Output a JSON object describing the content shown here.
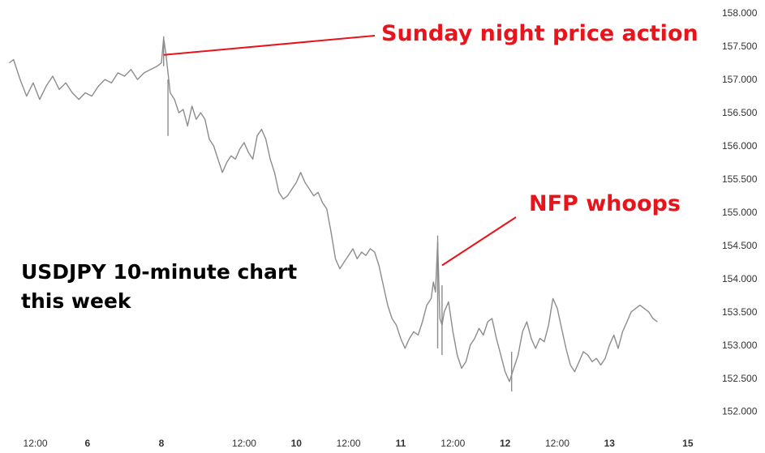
{
  "chart_data": {
    "type": "line",
    "title": "USDJPY 10-minute chart this week",
    "title_lines": [
      "USDJPY 10-minute chart",
      "this week"
    ],
    "series": [
      {
        "color": "#8c8c8c",
        "points": [
          [
            0,
            157.25
          ],
          [
            2,
            157.3
          ],
          [
            5,
            157.0
          ],
          [
            8,
            156.75
          ],
          [
            11,
            156.95
          ],
          [
            14,
            156.7
          ],
          [
            17,
            156.9
          ],
          [
            20,
            157.05
          ],
          [
            23,
            156.85
          ],
          [
            26,
            156.95
          ],
          [
            29,
            156.8
          ],
          [
            32,
            156.7
          ],
          [
            35,
            156.8
          ],
          [
            38,
            156.75
          ],
          [
            41,
            156.9
          ],
          [
            44,
            157.0
          ],
          [
            47,
            156.95
          ],
          [
            50,
            157.1
          ],
          [
            53,
            157.05
          ],
          [
            56,
            157.15
          ],
          [
            59,
            157.0
          ],
          [
            62,
            157.1
          ],
          [
            65,
            157.15
          ],
          [
            68,
            157.2
          ],
          [
            70,
            157.25
          ],
          [
            71,
            157.62
          ],
          [
            72,
            157.4
          ],
          [
            73,
            157.1
          ],
          [
            74,
            156.8
          ],
          [
            76,
            156.7
          ],
          [
            78,
            156.5
          ],
          [
            80,
            156.55
          ],
          [
            82,
            156.3
          ],
          [
            84,
            156.6
          ],
          [
            86,
            156.4
          ],
          [
            88,
            156.5
          ],
          [
            90,
            156.4
          ],
          [
            92,
            156.1
          ],
          [
            94,
            156.0
          ],
          [
            96,
            155.8
          ],
          [
            98,
            155.6
          ],
          [
            100,
            155.75
          ],
          [
            102,
            155.85
          ],
          [
            104,
            155.8
          ],
          [
            106,
            155.95
          ],
          [
            108,
            156.05
          ],
          [
            110,
            155.9
          ],
          [
            112,
            155.8
          ],
          [
            114,
            156.15
          ],
          [
            116,
            156.25
          ],
          [
            118,
            156.1
          ],
          [
            120,
            155.8
          ],
          [
            122,
            155.6
          ],
          [
            124,
            155.3
          ],
          [
            126,
            155.2
          ],
          [
            128,
            155.25
          ],
          [
            130,
            155.35
          ],
          [
            132,
            155.45
          ],
          [
            134,
            155.6
          ],
          [
            136,
            155.45
          ],
          [
            138,
            155.35
          ],
          [
            140,
            155.25
          ],
          [
            142,
            155.3
          ],
          [
            144,
            155.15
          ],
          [
            146,
            155.05
          ],
          [
            148,
            154.7
          ],
          [
            150,
            154.3
          ],
          [
            152,
            154.15
          ],
          [
            154,
            154.25
          ],
          [
            156,
            154.35
          ],
          [
            158,
            154.45
          ],
          [
            160,
            154.3
          ],
          [
            162,
            154.4
          ],
          [
            164,
            154.35
          ],
          [
            166,
            154.45
          ],
          [
            168,
            154.4
          ],
          [
            170,
            154.2
          ],
          [
            172,
            153.9
          ],
          [
            174,
            153.6
          ],
          [
            176,
            153.4
          ],
          [
            178,
            153.3
          ],
          [
            180,
            153.1
          ],
          [
            182,
            152.95
          ],
          [
            184,
            153.1
          ],
          [
            186,
            153.2
          ],
          [
            188,
            153.15
          ],
          [
            190,
            153.35
          ],
          [
            192,
            153.6
          ],
          [
            194,
            153.7
          ],
          [
            195,
            153.95
          ],
          [
            196,
            153.8
          ],
          [
            197,
            154.55
          ],
          [
            198,
            153.4
          ],
          [
            199,
            153.3
          ],
          [
            200,
            153.5
          ],
          [
            202,
            153.65
          ],
          [
            204,
            153.2
          ],
          [
            206,
            152.85
          ],
          [
            208,
            152.65
          ],
          [
            210,
            152.75
          ],
          [
            212,
            153.0
          ],
          [
            214,
            153.1
          ],
          [
            216,
            153.25
          ],
          [
            218,
            153.15
          ],
          [
            220,
            153.35
          ],
          [
            222,
            153.4
          ],
          [
            224,
            153.1
          ],
          [
            226,
            152.85
          ],
          [
            228,
            152.6
          ],
          [
            230,
            152.45
          ],
          [
            232,
            152.65
          ],
          [
            234,
            152.85
          ],
          [
            236,
            153.2
          ],
          [
            238,
            153.35
          ],
          [
            240,
            153.1
          ],
          [
            242,
            152.95
          ],
          [
            244,
            153.1
          ],
          [
            246,
            153.05
          ],
          [
            248,
            153.3
          ],
          [
            250,
            153.7
          ],
          [
            252,
            153.55
          ],
          [
            254,
            153.25
          ],
          [
            256,
            152.95
          ],
          [
            258,
            152.7
          ],
          [
            260,
            152.6
          ],
          [
            262,
            152.75
          ],
          [
            264,
            152.9
          ],
          [
            266,
            152.85
          ],
          [
            268,
            152.75
          ],
          [
            270,
            152.8
          ],
          [
            272,
            152.7
          ],
          [
            274,
            152.8
          ],
          [
            276,
            153.0
          ],
          [
            278,
            153.15
          ],
          [
            280,
            152.95
          ],
          [
            282,
            153.2
          ],
          [
            284,
            153.35
          ],
          [
            286,
            153.5
          ],
          [
            288,
            153.55
          ],
          [
            290,
            153.6
          ],
          [
            292,
            153.55
          ],
          [
            294,
            153.5
          ],
          [
            296,
            153.4
          ],
          [
            298,
            153.35
          ]
        ]
      }
    ],
    "wicks": [
      {
        "x": 71,
        "low": 157.2,
        "high": 157.65
      },
      {
        "x": 73,
        "low": 156.15,
        "high": 157.0
      },
      {
        "x": 197,
        "low": 152.95,
        "high": 154.65
      },
      {
        "x": 199,
        "low": 152.85,
        "high": 153.9
      },
      {
        "x": 231,
        "low": 152.3,
        "high": 152.9
      }
    ],
    "yticks": [
      "158.000",
      "157.500",
      "157.000",
      "156.500",
      "156.000",
      "155.500",
      "155.000",
      "154.500",
      "154.000",
      "153.500",
      "153.000",
      "152.500",
      "152.000"
    ],
    "ylim": [
      151.85,
      158.1
    ],
    "xlim": [
      -2,
      324
    ],
    "xticks": [
      {
        "x": 12,
        "label": "12:00"
      },
      {
        "x": 36,
        "label": "6"
      },
      {
        "x": 70,
        "label": "8"
      },
      {
        "x": 108,
        "label": "12:00"
      },
      {
        "x": 132,
        "label": "10"
      },
      {
        "x": 156,
        "label": "12:00"
      },
      {
        "x": 180,
        "label": "11"
      },
      {
        "x": 204,
        "label": "12:00"
      },
      {
        "x": 228,
        "label": "12"
      },
      {
        "x": 252,
        "label": "12:00"
      },
      {
        "x": 276,
        "label": "13"
      },
      {
        "x": 312,
        "label": "15"
      }
    ],
    "annotations": [
      {
        "text": "Sunday night price action",
        "color": "#e8141c",
        "point": {
          "x": 71,
          "y": 157.37
        }
      },
      {
        "text": "NFP whoops",
        "color": "#e8141c",
        "point": {
          "x": 199,
          "y": 154.2
        }
      }
    ],
    "grid": false
  }
}
